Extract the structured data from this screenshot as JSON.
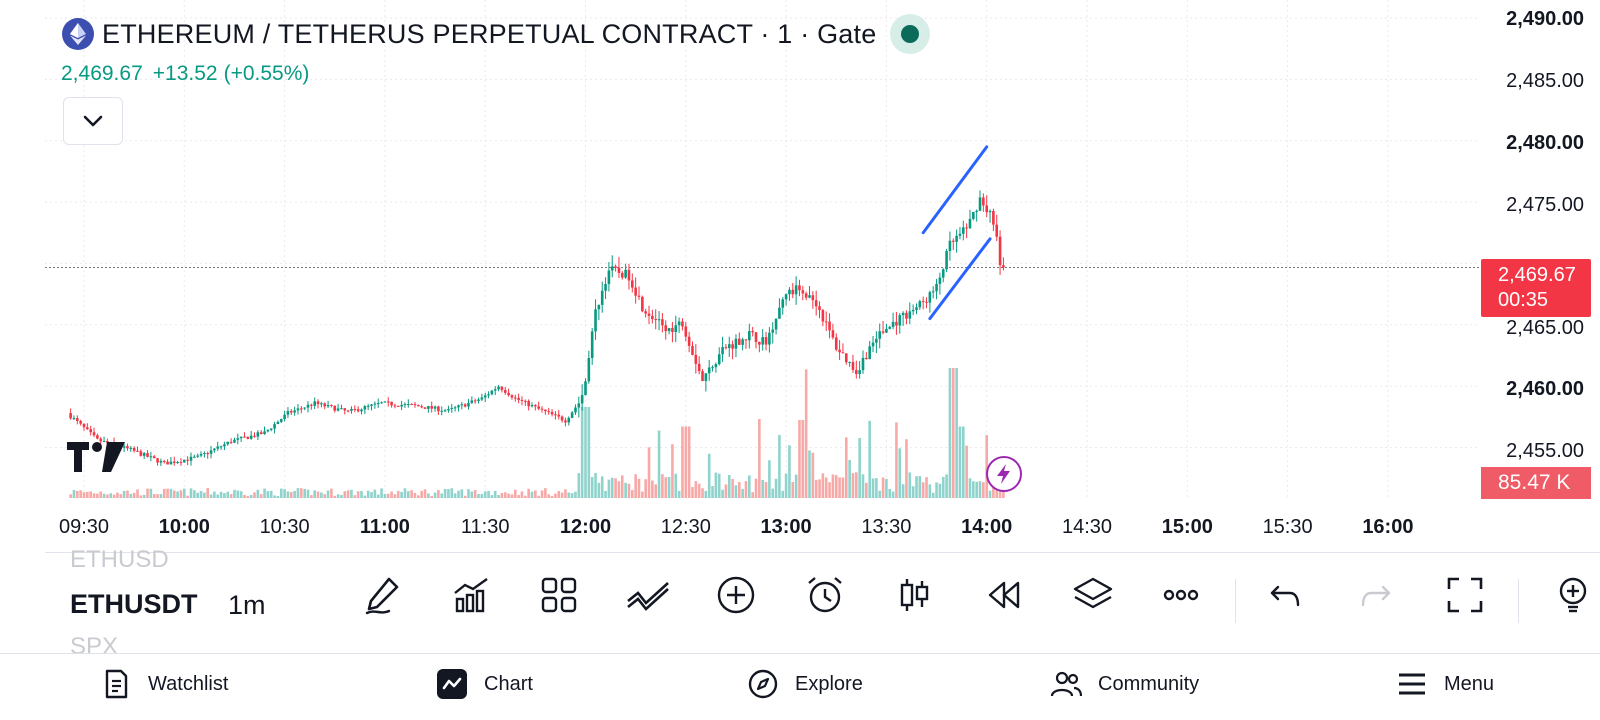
{
  "header": {
    "title": "ETHEREUM / TETHERUS PERPETUAL CONTRACT · 1 · Gate",
    "price": "2,469.67",
    "change": "+13.52",
    "change_pct": "(+0.55%)"
  },
  "colors": {
    "up": "#089981",
    "down": "#f23645",
    "vol_up": "#8fd3cc",
    "vol_down": "#f7a9a7",
    "trendline": "#2962ff",
    "grid": "#e8eaef"
  },
  "y_axis": [
    {
      "label": "2,490.00",
      "bold": true
    },
    {
      "label": "2,485.00",
      "bold": false
    },
    {
      "label": "2,480.00",
      "bold": true
    },
    {
      "label": "2,475.00",
      "bold": false
    },
    {
      "label": "2,465.00",
      "bold": false
    },
    {
      "label": "2,460.00",
      "bold": true
    },
    {
      "label": "2,455.00",
      "bold": false
    }
  ],
  "price_badge": {
    "price": "2,469.67",
    "countdown": "00:35"
  },
  "volume_badge": "85.47 K",
  "x_axis": [
    {
      "label": "09:30",
      "bold": false
    },
    {
      "label": "10:00",
      "bold": true
    },
    {
      "label": "10:30",
      "bold": false
    },
    {
      "label": "11:00",
      "bold": true
    },
    {
      "label": "11:30",
      "bold": false
    },
    {
      "label": "12:00",
      "bold": true
    },
    {
      "label": "12:30",
      "bold": false
    },
    {
      "label": "13:00",
      "bold": true
    },
    {
      "label": "13:30",
      "bold": false
    },
    {
      "label": "14:00",
      "bold": true
    },
    {
      "label": "14:30",
      "bold": false
    },
    {
      "label": "15:00",
      "bold": true
    },
    {
      "label": "15:30",
      "bold": false
    },
    {
      "label": "16:00",
      "bold": true
    }
  ],
  "chart_data": {
    "type": "candlestick",
    "interval": "1m",
    "symbol": "ETHUSDT",
    "y_range": [
      2451,
      2491
    ],
    "x_range": [
      "09:25",
      "16:15"
    ],
    "last_price": 2469.67,
    "volume_last": "85.47 K",
    "price_path": [
      [
        "09:26",
        2457.8
      ],
      [
        "09:35",
        2455.6
      ],
      [
        "09:45",
        2454.8
      ],
      [
        "09:55",
        2453.7
      ],
      [
        "10:05",
        2454.2
      ],
      [
        "10:15",
        2455.5
      ],
      [
        "10:25",
        2456.2
      ],
      [
        "10:32",
        2457.8
      ],
      [
        "10:40",
        2458.6
      ],
      [
        "10:50",
        2457.9
      ],
      [
        "11:00",
        2458.6
      ],
      [
        "11:10",
        2458.4
      ],
      [
        "11:20",
        2458.0
      ],
      [
        "11:30",
        2459.0
      ],
      [
        "11:35",
        2460.0
      ],
      [
        "11:40",
        2459.0
      ],
      [
        "11:48",
        2458.0
      ],
      [
        "11:55",
        2457.2
      ],
      [
        "12:00",
        2459.0
      ],
      [
        "12:04",
        2466.0
      ],
      [
        "12:08",
        2469.5
      ],
      [
        "12:14",
        2469.0
      ],
      [
        "12:18",
        2466.5
      ],
      [
        "12:25",
        2464.5
      ],
      [
        "12:30",
        2465.2
      ],
      [
        "12:36",
        2460.5
      ],
      [
        "12:42",
        2463.0
      ],
      [
        "12:50",
        2464.2
      ],
      [
        "12:55",
        2463.5
      ],
      [
        "13:00",
        2467.2
      ],
      [
        "13:05",
        2468.0
      ],
      [
        "13:10",
        2466.8
      ],
      [
        "13:16",
        2463.2
      ],
      [
        "13:22",
        2461.2
      ],
      [
        "13:28",
        2464.0
      ],
      [
        "13:35",
        2465.5
      ],
      [
        "13:42",
        2466.8
      ],
      [
        "13:46",
        2468.0
      ],
      [
        "13:50",
        2471.5
      ],
      [
        "13:55",
        2472.8
      ],
      [
        "13:59",
        2475.3
      ],
      [
        "14:02",
        2474.0
      ],
      [
        "14:04",
        2472.5
      ],
      [
        "14:05",
        2469.7
      ]
    ],
    "volume_spikes": [
      [
        "12:00",
        0.7
      ],
      [
        "12:30",
        0.55
      ],
      [
        "13:05",
        0.6
      ],
      [
        "13:50",
        1.0
      ],
      [
        "13:52",
        0.55
      ]
    ],
    "trendlines": [
      {
        "from": [
          "13:41",
          2472.5
        ],
        "to": [
          "14:00",
          2479.5
        ]
      },
      {
        "from": [
          "13:43",
          2465.5
        ],
        "to": [
          "14:01",
          2472.0
        ]
      }
    ]
  },
  "toolbar": {
    "symbol_prev": "ETHUSD",
    "symbol": "ETHUSDT",
    "symbol_next": "SPX",
    "interval": "1m"
  },
  "nav": {
    "watchlist": "Watchlist",
    "chart": "Chart",
    "explore": "Explore",
    "community": "Community",
    "menu": "Menu"
  }
}
